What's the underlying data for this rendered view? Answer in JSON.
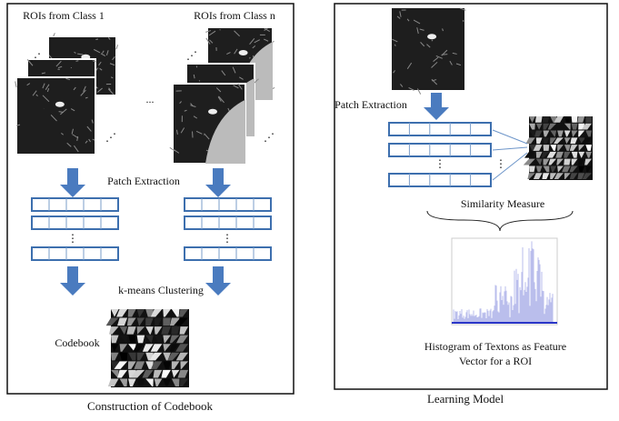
{
  "left_panel": {
    "class_first_label": "ROIs from Class 1",
    "class_last_label": "ROIs from Class n",
    "ellipsis": "...",
    "patch_extraction": "Patch Extraction",
    "clustering": "k-means Clustering",
    "codebook": "Codebook",
    "caption": "Construction of Codebook"
  },
  "right_panel": {
    "patch_extraction": "Patch Extraction",
    "similarity": "Similarity Measure",
    "histogram_caption": [
      "Histogram of Textons as Feature",
      "Vector for a ROI"
    ],
    "caption": "Learning Model"
  }
}
